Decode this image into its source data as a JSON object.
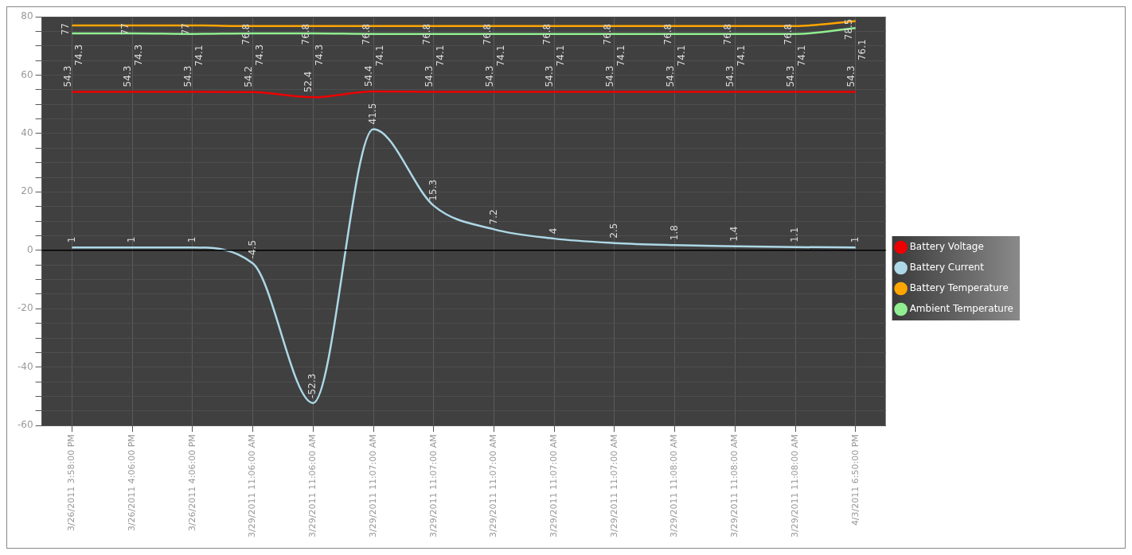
{
  "chart_data": {
    "type": "line",
    "categories": [
      "3/26/2011 3:58:00 PM",
      "3/26/2011 4:06:00 PM",
      "3/26/2011 4:06:00 PM",
      "3/29/2011 11:06:00 AM",
      "3/29/2011 11:06:00 AM",
      "3/29/2011 11:07:00 AM",
      "3/29/2011 11:07:00 AM",
      "3/29/2011 11:07:00 AM",
      "3/29/2011 11:07:00 AM",
      "3/29/2011 11:07:00 AM",
      "3/29/2011 11:08:00 AM",
      "3/29/2011 11:08:00 AM",
      "3/29/2011 11:08:00 AM",
      "4/3/2011 6:50:00 PM"
    ],
    "series": [
      {
        "name": "Battery Voltage",
        "color": "#ee0000",
        "values": [
          54.3,
          54.3,
          54.3,
          54.2,
          52.4,
          54.4,
          54.3,
          54.3,
          54.3,
          54.3,
          54.3,
          54.3,
          54.3,
          54.3
        ]
      },
      {
        "name": "Battery Current",
        "color": "#add8e6",
        "values": [
          1,
          1,
          1,
          -4.5,
          -52.3,
          41.5,
          15.3,
          7.2,
          4,
          2.5,
          1.8,
          1.4,
          1.1,
          1
        ]
      },
      {
        "name": "Battery Temperature",
        "color": "#ffa500",
        "values": [
          77,
          77,
          77,
          76.8,
          76.8,
          76.8,
          76.8,
          76.8,
          76.8,
          76.8,
          76.8,
          76.8,
          76.8,
          78.5
        ]
      },
      {
        "name": "Ambient Temperature",
        "color": "#90ee90",
        "values": [
          74.3,
          74.3,
          74.1,
          74.3,
          74.3,
          74.1,
          74.1,
          74.1,
          74.1,
          74.1,
          74.1,
          74.1,
          74.1,
          76.1
        ]
      }
    ],
    "ylim": [
      -60,
      80
    ],
    "yticks": [
      -60,
      {
        "value": -55,
        "label": null
      },
      {
        "value": -50,
        "label": null
      },
      {
        "value": -45,
        "label": null
      },
      -40,
      {
        "value": -35,
        "label": null
      },
      {
        "value": -30,
        "label": null
      },
      {
        "value": -25,
        "label": null
      },
      -20,
      {
        "value": -15,
        "label": null
      },
      {
        "value": -10,
        "label": null
      },
      {
        "value": -5,
        "label": null
      },
      0,
      {
        "value": 5,
        "label": null
      },
      {
        "value": 10,
        "label": null
      },
      {
        "value": 15,
        "label": null
      },
      20,
      {
        "value": 25,
        "label": null
      },
      {
        "value": 30,
        "label": null
      },
      {
        "value": 35,
        "label": null
      },
      40,
      {
        "value": 45,
        "label": null
      },
      {
        "value": 50,
        "label": null
      },
      {
        "value": 55,
        "label": null
      },
      60,
      {
        "value": 65,
        "label": null
      },
      {
        "value": 70,
        "label": null
      },
      {
        "value": 75,
        "label": null
      },
      80
    ],
    "ref_lines": [
      {
        "axis": "y",
        "value": 0,
        "color": "#000000"
      }
    ],
    "grid": true,
    "legend": "right",
    "marker": "none",
    "line_style": "solid",
    "data_labels": true
  }
}
